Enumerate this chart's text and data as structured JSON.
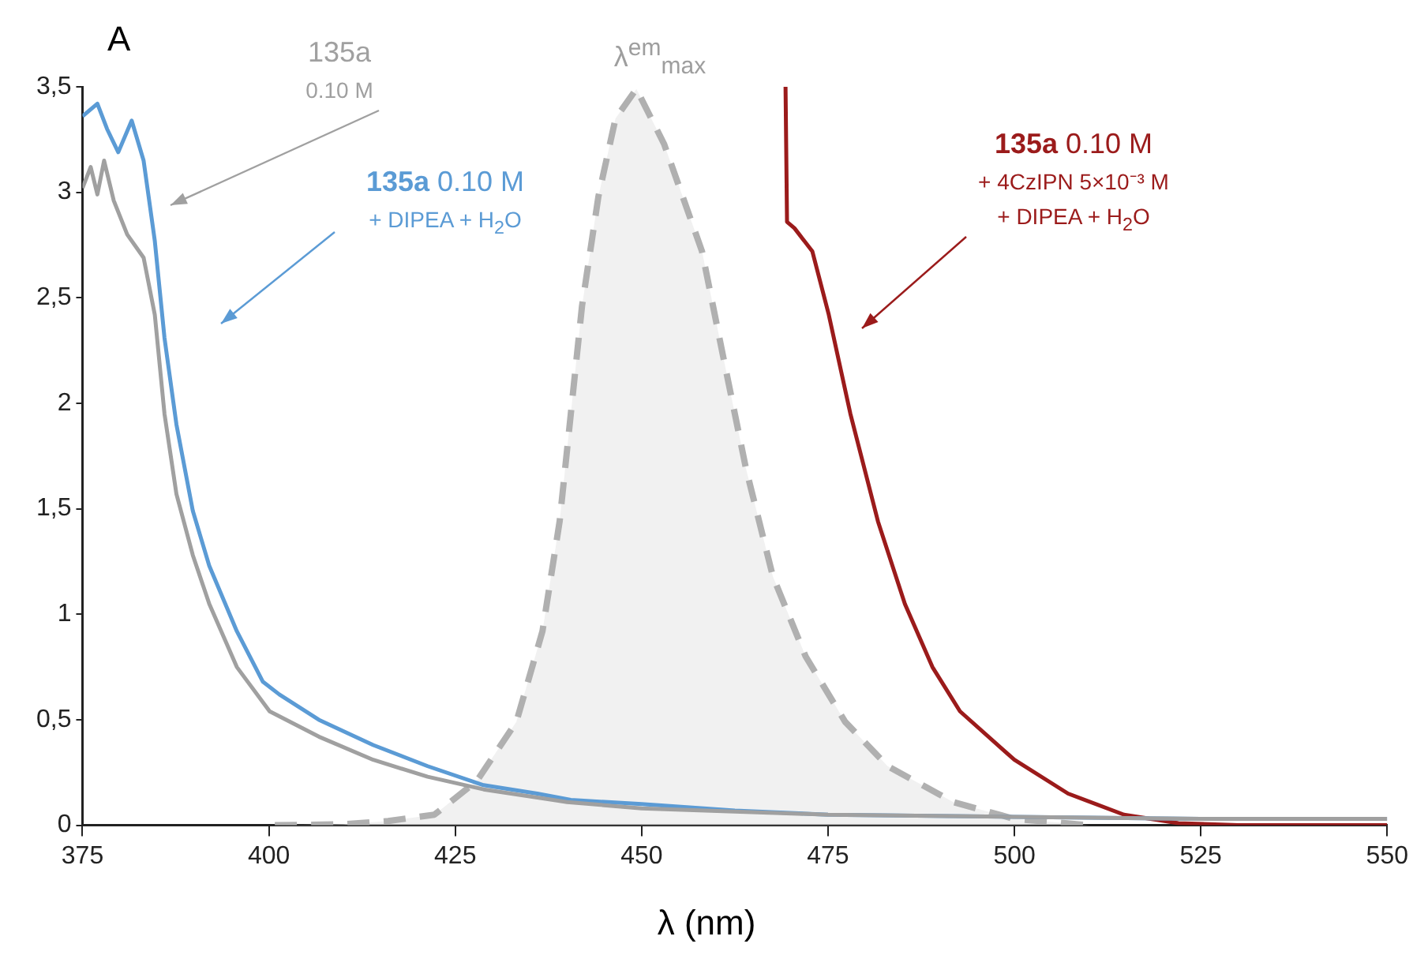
{
  "chart_data": {
    "type": "line",
    "xlabel": "λ (nm)",
    "ylabel": "A",
    "legend": false,
    "grid": false,
    "marker": "none",
    "xlim": [
      375,
      550
    ],
    "xticks": [
      375,
      400,
      425,
      450,
      475,
      500,
      525,
      550
    ],
    "ylim": [
      0,
      3.5
    ],
    "yticks": [
      0,
      {
        "value": 0.5,
        "label": "0,5"
      },
      1,
      {
        "value": 1.5,
        "label": "1,5"
      },
      2,
      {
        "value": 2.5,
        "label": "2,5"
      },
      3,
      {
        "value": 3.5,
        "label": "3,5"
      }
    ],
    "series": [
      {
        "type": "area",
        "name": "λ$^{em}$$_{max}$",
        "color": "#b0b0b0",
        "line_style": "dashed",
        "x": [
          400.8,
          410,
          416,
          422.2,
          427.9,
          433.2,
          436.7,
          439,
          440.5,
          442,
          444.2,
          446.5,
          449.3,
          453,
          458.1,
          461,
          464,
          467.6,
          472,
          477.3,
          483,
          491.8,
          500,
          510
        ],
        "values": [
          0,
          0.005,
          0.02,
          0.05,
          0.21,
          0.49,
          0.92,
          1.44,
          1.95,
          2.46,
          2.98,
          3.35,
          3.49,
          3.23,
          2.72,
          2.21,
          1.69,
          1.18,
          0.8,
          0.49,
          0.28,
          0.11,
          0.03,
          0
        ]
      },
      {
        "type": "line",
        "name": "135a\n0.10 M",
        "color": "#a0a0a0",
        "line_style": "solid",
        "x": [
          375,
          376.1,
          377,
          377.9,
          379.2,
          381,
          383.2,
          384.7,
          386,
          387.6,
          389.8,
          392,
          395.7,
          400.1,
          406.7,
          414,
          421.3,
          428.8,
          440,
          450,
          475,
          500,
          525,
          550
        ],
        "values": [
          3.02,
          3.12,
          2.99,
          3.15,
          2.96,
          2.8,
          2.69,
          2.42,
          1.95,
          1.57,
          1.28,
          1.05,
          0.75,
          0.54,
          0.42,
          0.31,
          0.23,
          0.17,
          0.11,
          0.08,
          0.05,
          0.04,
          0.03,
          0.03
        ]
      },
      {
        "type": "line",
        "name": "135a 0.10 M\n+ DIPEA + H$_{2}$O",
        "color": "#5b9bd5",
        "line_style": "solid",
        "x": [
          375,
          377,
          378.3,
          379.8,
          381.6,
          383.2,
          384.7,
          386,
          387.6,
          389.8,
          392,
          395.7,
          399.2,
          401.4,
          406.7,
          414,
          421.3,
          428.8,
          436,
          440.5,
          450,
          462.5,
          475,
          500,
          525,
          550
        ],
        "values": [
          3.36,
          3.42,
          3.3,
          3.19,
          3.34,
          3.15,
          2.77,
          2.31,
          1.9,
          1.49,
          1.23,
          0.92,
          0.68,
          0.62,
          0.5,
          0.38,
          0.28,
          0.19,
          0.15,
          0.12,
          0.1,
          0.07,
          0.05,
          0.04,
          0.03,
          0.03
        ]
      },
      {
        "type": "line",
        "name": "135a 0.10 M\n+ 4CzIPN 5×10⁻³ M\n+ DIPEA + H$_{2}$O",
        "color": "#9b1b1b",
        "line_style": "solid",
        "x": [
          469.3,
          469.5,
          470.5,
          472.9,
          475.1,
          478,
          481.7,
          485.3,
          489,
          492.7,
          500,
          507.2,
          514.7,
          522,
          530,
          550
        ],
        "values": [
          3.5,
          2.86,
          2.83,
          2.72,
          2.42,
          1.95,
          1.44,
          1.05,
          0.75,
          0.54,
          0.31,
          0.15,
          0.05,
          0.01,
          0,
          0
        ]
      }
    ]
  }
}
